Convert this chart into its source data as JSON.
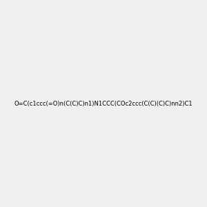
{
  "smiles": "O=C(c1ccc(=O)n(C(C)C)n1)N1CCC(COc2ccc(C(C)(C)C)nn2)C1",
  "image_size": 300,
  "background_color": "#f0f0f0",
  "title": "",
  "atom_colors": {
    "N": "#0000FF",
    "O": "#FF0000",
    "C": "#000000"
  }
}
